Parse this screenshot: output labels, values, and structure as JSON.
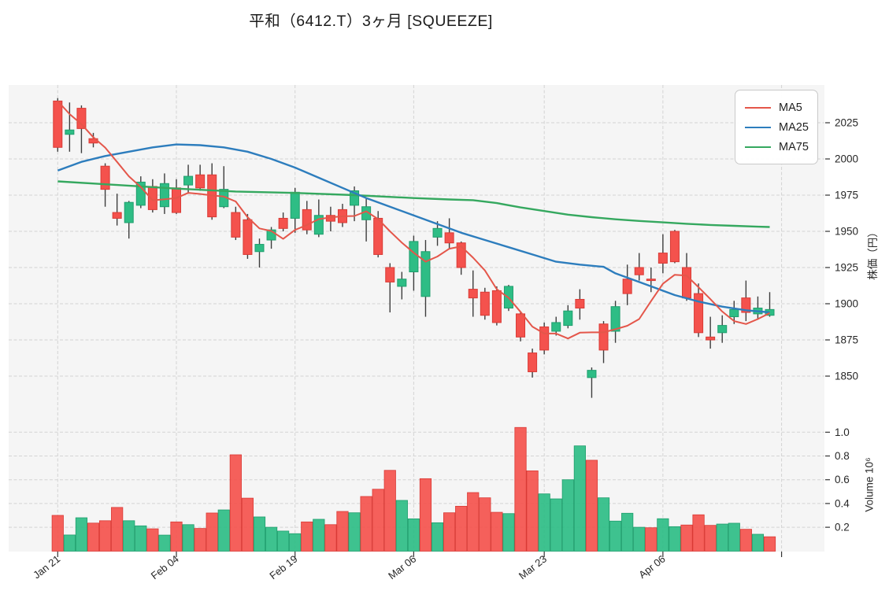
{
  "title": "平和（6412.T）3ヶ月 [SQUEEZE]",
  "legend": {
    "items": [
      {
        "label": "MA5",
        "color": "#e4564a"
      },
      {
        "label": "MA25",
        "color": "#2d7dbd"
      },
      {
        "label": "MA75",
        "color": "#35a85f"
      }
    ]
  },
  "chart_data": {
    "type": "candlestick",
    "title": "平和（6412.T）3ヶ月 [SQUEEZE]",
    "grid": true,
    "legend_position": "top-right",
    "price_axis": {
      "label": "株価（円）",
      "side": "right",
      "ticks": [
        1850,
        1875,
        1900,
        1925,
        1950,
        1975,
        2000,
        2025
      ]
    },
    "volume_axis": {
      "label": "Volume 10⁶",
      "side": "right",
      "ticks": [
        0.2,
        0.4,
        0.6,
        0.8,
        1.0
      ]
    },
    "x_ticks": [
      {
        "index": 0,
        "label": "Jan 21"
      },
      {
        "index": 10,
        "label": "Feb 04"
      },
      {
        "index": 20,
        "label": "Feb 19"
      },
      {
        "index": 30,
        "label": "Mar 06"
      },
      {
        "index": 41,
        "label": "Mar 23"
      },
      {
        "index": 51,
        "label": "Apr 06"
      },
      {
        "index": 61,
        "label": ""
      }
    ],
    "series_legend": [
      "MA5",
      "MA25",
      "MA75"
    ],
    "candles_format": [
      "open",
      "high",
      "low",
      "close",
      "volume_millions"
    ],
    "candles": [
      [
        2040,
        2042,
        2005,
        2008,
        0.3
      ],
      [
        2017,
        2039,
        2005,
        2020,
        0.135
      ],
      [
        2035,
        2037,
        2004,
        2021,
        0.28
      ],
      [
        2014,
        2018,
        2008,
        2011,
        0.235
      ],
      [
        1995,
        1997,
        1967,
        1979,
        0.255
      ],
      [
        1963,
        1976,
        1954,
        1959,
        0.367
      ],
      [
        1956,
        1971,
        1945,
        1970,
        0.255
      ],
      [
        1968,
        1988,
        1966,
        1984,
        0.212
      ],
      [
        1981,
        1986,
        1963,
        1965,
        0.187
      ],
      [
        1967,
        1990,
        1962,
        1983,
        0.134
      ],
      [
        1980,
        1986,
        1962,
        1963,
        0.245
      ],
      [
        1982,
        1996,
        1976,
        1988,
        0.222
      ],
      [
        1989,
        1996,
        1978,
        1980,
        0.19
      ],
      [
        1989,
        1997,
        1958,
        1960,
        0.32
      ],
      [
        1967,
        1995,
        1966,
        1979,
        0.346
      ],
      [
        1963,
        1967,
        1944,
        1946,
        0.81
      ],
      [
        1958,
        1962,
        1931,
        1934,
        0.445
      ],
      [
        1936,
        1945,
        1925,
        1941,
        0.287
      ],
      [
        1944,
        1953,
        1938,
        1951,
        0.2
      ],
      [
        1959,
        1963,
        1950,
        1952,
        0.168
      ],
      [
        1959,
        1980,
        1949,
        1977,
        0.146
      ],
      [
        1965,
        1971,
        1948,
        1951,
        0.245
      ],
      [
        1948,
        1972,
        1946,
        1961,
        0.267
      ],
      [
        1961,
        1967,
        1950,
        1957,
        0.222
      ],
      [
        1965,
        1969,
        1953,
        1956,
        0.333
      ],
      [
        1968,
        1981,
        1957,
        1978,
        0.322
      ],
      [
        1958,
        1973,
        1943,
        1967,
        0.459
      ],
      [
        1959,
        1964,
        1932,
        1934,
        0.52
      ],
      [
        1925,
        1928,
        1894,
        1915,
        0.679
      ],
      [
        1912,
        1922,
        1903,
        1917,
        0.426
      ],
      [
        1922,
        1947,
        1909,
        1943,
        0.271
      ],
      [
        1905,
        1944,
        1891,
        1936,
        0.609
      ],
      [
        1946,
        1957,
        1940,
        1952,
        0.238
      ],
      [
        1949,
        1959,
        1938,
        1942,
        0.322
      ],
      [
        1942,
        1943,
        1920,
        1925,
        0.377
      ],
      [
        1910,
        1923,
        1891,
        1904,
        0.492
      ],
      [
        1908,
        1911,
        1889,
        1892,
        0.448
      ],
      [
        1909,
        1912,
        1885,
        1887,
        0.326
      ],
      [
        1897,
        1913,
        1895,
        1912,
        0.315
      ],
      [
        1893,
        1894,
        1874,
        1877,
        1.04
      ],
      [
        1866,
        1869,
        1849,
        1853,
        0.675
      ],
      [
        1884,
        1887,
        1865,
        1868,
        0.481
      ],
      [
        1881,
        1891,
        1878,
        1887,
        0.439
      ],
      [
        1885,
        1899,
        1883,
        1895,
        0.6
      ],
      [
        1903,
        1910,
        1889,
        1897,
        0.885
      ],
      [
        1849,
        1856,
        1835,
        1854,
        0.764
      ],
      [
        1886,
        1888,
        1859,
        1868,
        0.448
      ],
      [
        1881,
        1902,
        1873,
        1898,
        0.252
      ],
      [
        1917,
        1927,
        1899,
        1907,
        0.318
      ],
      [
        1925,
        1935,
        1916,
        1920,
        0.2
      ],
      [
        1917,
        1925,
        1908,
        1916,
        0.196
      ],
      [
        1935,
        1948,
        1921,
        1928,
        0.272
      ],
      [
        1950,
        1951,
        1928,
        1929,
        0.205
      ],
      [
        1925,
        1935,
        1902,
        1904,
        0.219
      ],
      [
        1907,
        1914,
        1877,
        1880,
        0.305
      ],
      [
        1877,
        1891,
        1869,
        1875,
        0.216
      ],
      [
        1880,
        1892,
        1873,
        1885,
        0.227
      ],
      [
        1891,
        1902,
        1886,
        1896,
        0.234
      ],
      [
        1904,
        1916,
        1888,
        1894,
        0.183
      ],
      [
        1893,
        1905,
        1889,
        1897,
        0.141
      ],
      [
        1892,
        1908,
        1891,
        1896,
        0.12
      ]
    ],
    "ma5_lead_in": [
      2040,
      2031,
      2024,
      2015
    ],
    "ma25_points": [
      [
        0,
        1992
      ],
      [
        2,
        1998
      ],
      [
        4,
        2002
      ],
      [
        6,
        2005
      ],
      [
        8,
        2008
      ],
      [
        10,
        2010
      ],
      [
        12,
        2009.5
      ],
      [
        14,
        2008
      ],
      [
        16,
        2005
      ],
      [
        18,
        2000
      ],
      [
        20,
        1994
      ],
      [
        22,
        1987
      ],
      [
        24,
        1980
      ],
      [
        26,
        1973
      ],
      [
        28,
        1967
      ],
      [
        30,
        1961
      ],
      [
        32,
        1955
      ],
      [
        34,
        1949
      ],
      [
        36,
        1944
      ],
      [
        38,
        1939
      ],
      [
        40,
        1934
      ],
      [
        42,
        1929
      ],
      [
        44,
        1927
      ],
      [
        46,
        1925.5
      ],
      [
        47,
        1921
      ],
      [
        48,
        1918
      ],
      [
        50,
        1912
      ],
      [
        52,
        1906
      ],
      [
        54,
        1901.5
      ],
      [
        56,
        1898
      ],
      [
        58,
        1895.5
      ],
      [
        60,
        1894
      ]
    ],
    "ma75_points": [
      [
        0,
        1984.5
      ],
      [
        5,
        1982
      ],
      [
        10,
        1979.5
      ],
      [
        15,
        1977.5
      ],
      [
        20,
        1976.5
      ],
      [
        25,
        1975
      ],
      [
        30,
        1973
      ],
      [
        33,
        1972
      ],
      [
        35,
        1971.5
      ],
      [
        37,
        1969.5
      ],
      [
        39,
        1966.5
      ],
      [
        41,
        1964
      ],
      [
        43,
        1961.5
      ],
      [
        45,
        1959.8
      ],
      [
        47,
        1958.3
      ],
      [
        49,
        1957.2
      ],
      [
        51,
        1956.2
      ],
      [
        53,
        1955.2
      ],
      [
        55,
        1954.4
      ],
      [
        57,
        1953.8
      ],
      [
        59,
        1953.2
      ],
      [
        60,
        1953
      ]
    ],
    "colors": {
      "up": "#2ebd85",
      "up_stroke": "#1f9e6d",
      "down": "#f4524d",
      "down_stroke": "#d93a35",
      "wick": "#3d3d3d",
      "ma5": "#e4564a",
      "ma25": "#2d7dbd",
      "ma75": "#35a85f",
      "plot_bg": "#f5f5f5",
      "grid": "#d4d4d4",
      "text": "#262626"
    }
  }
}
